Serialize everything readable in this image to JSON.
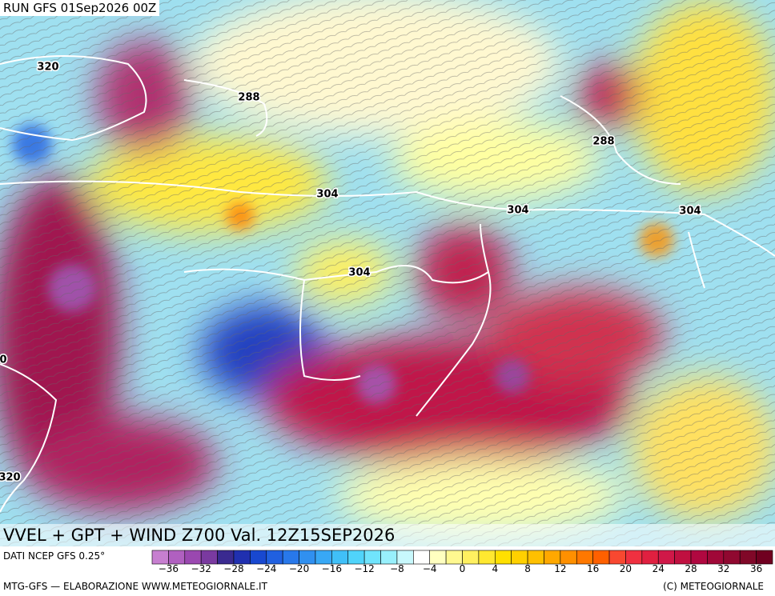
{
  "header": {
    "run": "RUN GFS 01Sep2026 00Z"
  },
  "contour_labels": [
    "320",
    "288",
    "304",
    "288",
    "304",
    "304",
    "304",
    "0",
    "320"
  ],
  "title": "VVEL + GPT + WIND Z700 Val. 12Z15SEP2026",
  "colorbar": {
    "source": "DATI NCEP GFS 0.25°",
    "colors": [
      "#c77fd0",
      "#b060c0",
      "#9a48b0",
      "#7a3aa0",
      "#3a2a90",
      "#2030b0",
      "#1848d0",
      "#2060e0",
      "#2878ea",
      "#3090f0",
      "#38a8f5",
      "#40c0f8",
      "#50d4fa",
      "#70e4fc",
      "#98f0fc",
      "#c8f8fc",
      "#ffffff",
      "#ffffc0",
      "#fff890",
      "#fff060",
      "#ffe830",
      "#ffe000",
      "#ffd000",
      "#ffc000",
      "#ffa800",
      "#ff9000",
      "#ff7800",
      "#ff6000",
      "#f84830",
      "#f03040",
      "#e02040",
      "#d01848",
      "#c01040",
      "#b00840",
      "#a00838",
      "#900830",
      "#800828",
      "#700020"
    ],
    "labels": [
      "−36",
      "−32",
      "−28",
      "−24",
      "−20",
      "−16",
      "−12",
      "−8",
      "−4",
      "0",
      "4",
      "8",
      "12",
      "16",
      "20",
      "24",
      "28",
      "32",
      "36"
    ]
  },
  "footer": {
    "left": "MTG-GFS — ELABORAZIONE WWW.METEOGIORNALE.IT",
    "right": "(C) METEOGIORNALE"
  }
}
